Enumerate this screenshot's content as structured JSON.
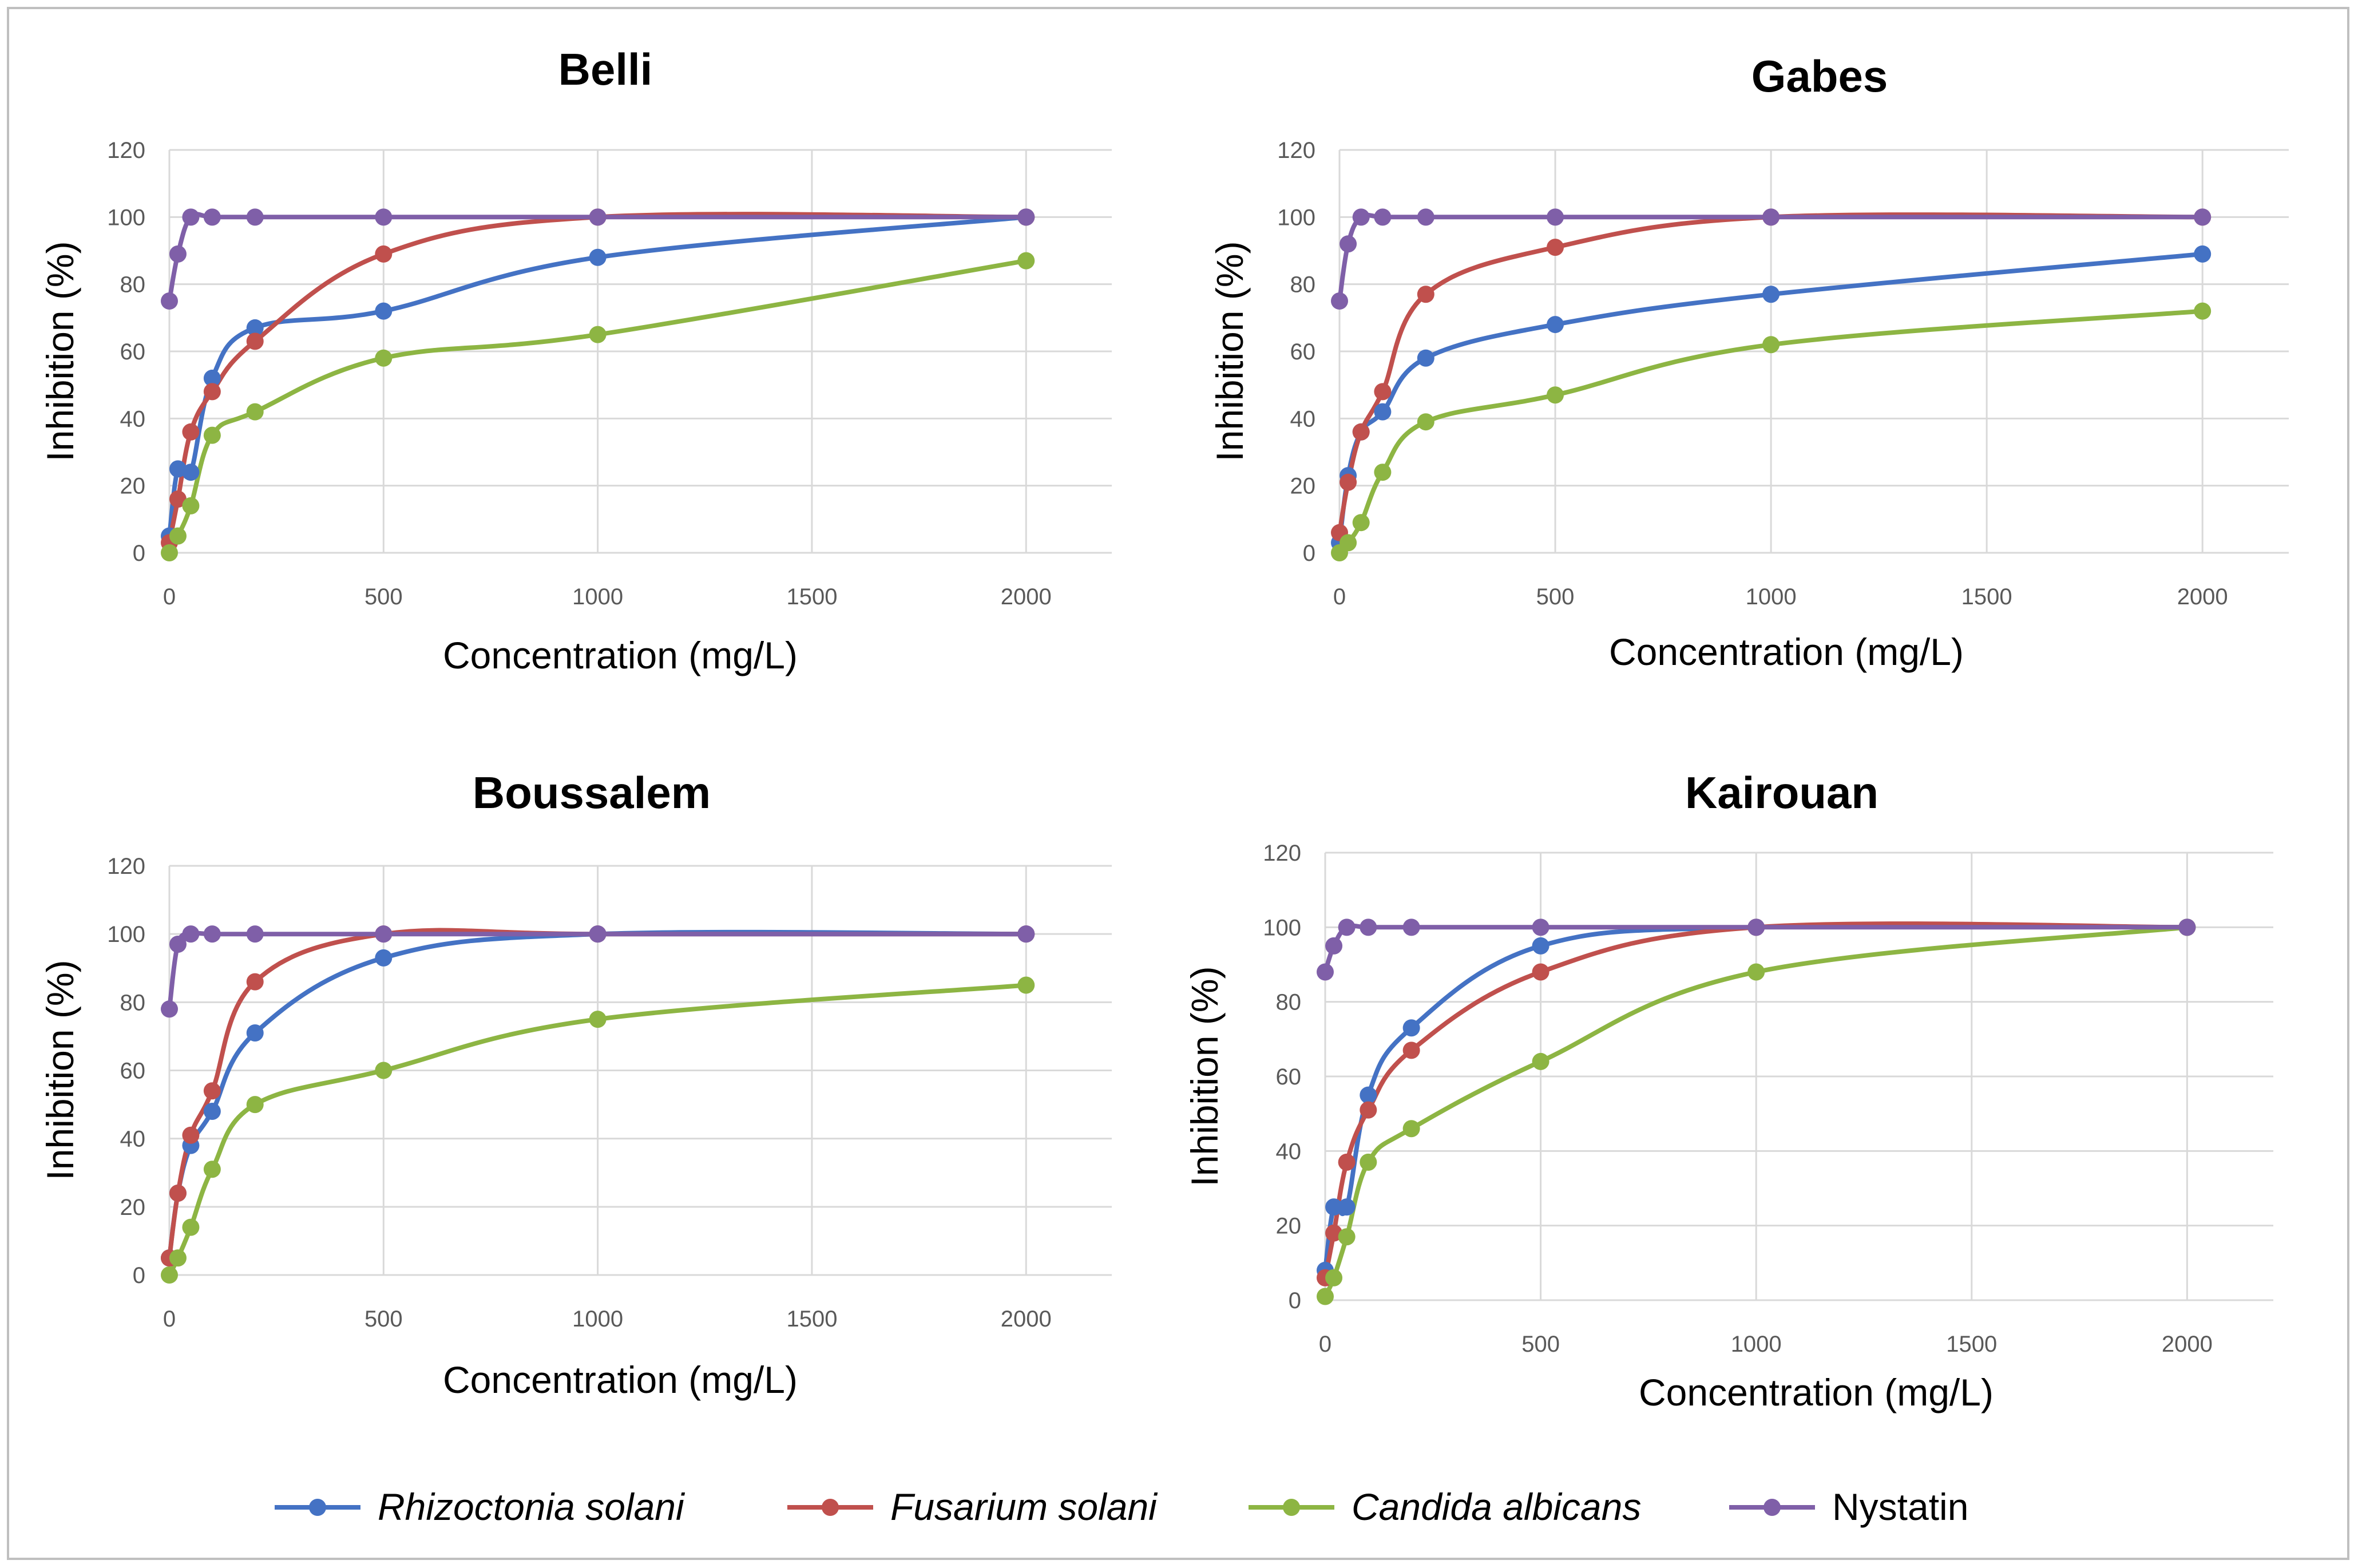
{
  "chart_data": [
    {
      "type": "line",
      "title": "Belli",
      "xlabel": "Concentration (mg/L)",
      "ylabel": "Inhibition (%)",
      "xlim": [
        0,
        2200
      ],
      "ylim": [
        0,
        120
      ],
      "x_ticks": [
        0,
        500,
        1000,
        1500,
        2000
      ],
      "y_ticks": [
        0,
        20,
        40,
        60,
        80,
        100,
        120
      ],
      "grid": true,
      "series": [
        {
          "name": "Rhizoctonia solani",
          "x": [
            0,
            20,
            50,
            100,
            200,
            500,
            1000,
            2000
          ],
          "values": [
            5,
            25,
            24,
            52,
            67,
            72,
            88,
            100
          ]
        },
        {
          "name": "Fusarium solani",
          "x": [
            0,
            20,
            50,
            100,
            200,
            500,
            1000,
            2000
          ],
          "values": [
            3,
            16,
            36,
            48,
            63,
            89,
            100,
            100
          ]
        },
        {
          "name": "Candida albicans",
          "x": [
            0,
            20,
            50,
            100,
            200,
            500,
            1000,
            2000
          ],
          "values": [
            0,
            5,
            14,
            35,
            42,
            58,
            65,
            87
          ]
        },
        {
          "name": "Nystatin",
          "x": [
            0,
            20,
            50,
            100,
            200,
            500,
            1000,
            2000
          ],
          "values": [
            75,
            89,
            100,
            100,
            100,
            100,
            100,
            100
          ]
        }
      ]
    },
    {
      "type": "line",
      "title": "Gabes",
      "xlabel": "Concentration (mg/L)",
      "ylabel": "Inhibition (%)",
      "xlim": [
        0,
        2200
      ],
      "ylim": [
        0,
        120
      ],
      "x_ticks": [
        0,
        500,
        1000,
        1500,
        2000
      ],
      "y_ticks": [
        0,
        20,
        40,
        60,
        80,
        100,
        120
      ],
      "grid": true,
      "series": [
        {
          "name": "Rhizoctonia solani",
          "x": [
            0,
            20,
            50,
            100,
            200,
            500,
            1000,
            2000
          ],
          "values": [
            3,
            23,
            36,
            42,
            58,
            68,
            77,
            89
          ]
        },
        {
          "name": "Fusarium solani",
          "x": [
            0,
            20,
            50,
            100,
            200,
            500,
            1000,
            2000
          ],
          "values": [
            6,
            21,
            36,
            48,
            77,
            91,
            100,
            100
          ]
        },
        {
          "name": "Candida albicans",
          "x": [
            0,
            20,
            50,
            100,
            200,
            500,
            1000,
            2000
          ],
          "values": [
            0,
            3,
            9,
            24,
            39,
            47,
            62,
            72
          ]
        },
        {
          "name": "Nystatin",
          "x": [
            0,
            20,
            50,
            100,
            200,
            500,
            1000,
            2000
          ],
          "values": [
            75,
            92,
            100,
            100,
            100,
            100,
            100,
            100
          ]
        }
      ]
    },
    {
      "type": "line",
      "title": "Boussalem",
      "xlabel": "Concentration (mg/L)",
      "ylabel": "Inhibition (%)",
      "xlim": [
        0,
        2200
      ],
      "ylim": [
        0,
        120
      ],
      "x_ticks": [
        0,
        500,
        1000,
        1500,
        2000
      ],
      "y_ticks": [
        0,
        20,
        40,
        60,
        80,
        100,
        120
      ],
      "grid": true,
      "series": [
        {
          "name": "Rhizoctonia solani",
          "x": [
            0,
            20,
            50,
            100,
            200,
            500,
            1000,
            2000
          ],
          "values": [
            5,
            24,
            38,
            48,
            71,
            93,
            100,
            100
          ]
        },
        {
          "name": "Fusarium solani",
          "x": [
            0,
            20,
            50,
            100,
            200,
            500,
            1000,
            2000
          ],
          "values": [
            5,
            24,
            41,
            54,
            86,
            100,
            100,
            100
          ]
        },
        {
          "name": "Candida albicans",
          "x": [
            0,
            20,
            50,
            100,
            200,
            500,
            1000,
            2000
          ],
          "values": [
            0,
            5,
            14,
            31,
            50,
            60,
            75,
            85
          ]
        },
        {
          "name": "Nystatin",
          "x": [
            0,
            20,
            50,
            100,
            200,
            500,
            1000,
            2000
          ],
          "values": [
            78,
            97,
            100,
            100,
            100,
            100,
            100,
            100
          ]
        }
      ]
    },
    {
      "type": "line",
      "title": "Kairouan",
      "xlabel": "Concentration (mg/L)",
      "ylabel": "Inhibition (%)",
      "xlim": [
        0,
        2200
      ],
      "ylim": [
        0,
        120
      ],
      "x_ticks": [
        0,
        500,
        1000,
        1500,
        2000
      ],
      "y_ticks": [
        0,
        20,
        40,
        60,
        80,
        100,
        120
      ],
      "grid": true,
      "series": [
        {
          "name": "Rhizoctonia solani",
          "x": [
            0,
            20,
            50,
            100,
            200,
            500,
            1000,
            2000
          ],
          "values": [
            8,
            25,
            25,
            55,
            73,
            95,
            100,
            100
          ]
        },
        {
          "name": "Fusarium solani",
          "x": [
            0,
            20,
            50,
            100,
            200,
            500,
            1000,
            2000
          ],
          "values": [
            6,
            18,
            37,
            51,
            67,
            88,
            100,
            100
          ]
        },
        {
          "name": "Candida albicans",
          "x": [
            0,
            20,
            50,
            100,
            200,
            500,
            1000,
            2000
          ],
          "values": [
            1,
            6,
            17,
            37,
            46,
            64,
            88,
            100
          ]
        },
        {
          "name": "Nystatin",
          "x": [
            0,
            20,
            50,
            100,
            200,
            500,
            1000,
            2000
          ],
          "values": [
            88,
            95,
            100,
            100,
            100,
            100,
            100,
            100
          ]
        }
      ]
    }
  ],
  "legend": [
    {
      "name": "Rhizoctonia solani",
      "italic": true,
      "color": "#4472C4"
    },
    {
      "name": "Fusarium solani",
      "italic": true,
      "color": "#C0504D"
    },
    {
      "name": "Candida albicans",
      "italic": true,
      "color": "#8DB543"
    },
    {
      "name": "Nystatin",
      "italic": false,
      "color": "#7F5FA8"
    }
  ]
}
